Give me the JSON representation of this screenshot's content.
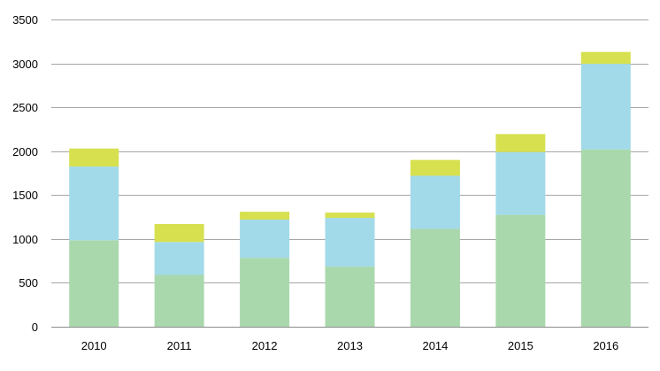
{
  "chart_data": {
    "type": "bar",
    "stacked": true,
    "categories": [
      "2010",
      "2011",
      "2012",
      "2013",
      "2014",
      "2015",
      "2016"
    ],
    "series": [
      {
        "color": "#a9d8ad",
        "values": [
          985,
          590,
          785,
          685,
          1115,
          1275,
          2020
        ]
      },
      {
        "color": "#a2dae9",
        "values": [
          840,
          375,
          435,
          555,
          605,
          715,
          975
        ]
      },
      {
        "color": "#d7e04f",
        "values": [
          205,
          205,
          90,
          60,
          180,
          205,
          135
        ]
      }
    ],
    "title": "",
    "xlabel": "",
    "ylabel": "",
    "ylim": [
      0,
      3500
    ],
    "yticks": [
      0,
      500,
      1000,
      1500,
      2000,
      2500,
      3000,
      3500
    ],
    "grid": true,
    "legend": "none"
  }
}
